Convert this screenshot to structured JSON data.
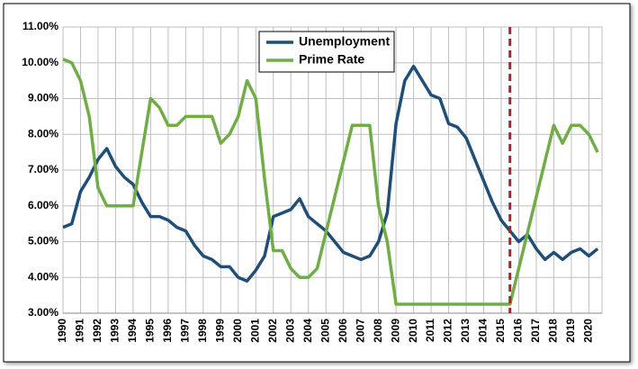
{
  "chart_data": {
    "type": "line",
    "x": [
      1990,
      1990.5,
      1991,
      1991.5,
      1992,
      1992.5,
      1993,
      1993.5,
      1994,
      1994.5,
      1995,
      1995.5,
      1996,
      1996.5,
      1997,
      1997.5,
      1998,
      1998.5,
      1999,
      1999.5,
      2000,
      2000.5,
      2001,
      2001.5,
      2002,
      2002.5,
      2003,
      2003.5,
      2004,
      2004.5,
      2005,
      2005.5,
      2006,
      2006.5,
      2007,
      2007.5,
      2008,
      2008.5,
      2009,
      2009.5,
      2010,
      2010.5,
      2011,
      2011.5,
      2012,
      2012.5,
      2013,
      2013.5,
      2014,
      2014.5,
      2015,
      2015.5,
      2016,
      2016.5,
      2017,
      2017.5,
      2018,
      2018.5,
      2019,
      2019.5,
      2020,
      2020.5
    ],
    "series": [
      {
        "name": "Unemployment",
        "color": "#1f4e79",
        "values": [
          5.4,
          5.5,
          6.4,
          6.8,
          7.3,
          7.6,
          7.1,
          6.8,
          6.6,
          6.1,
          5.7,
          5.7,
          5.6,
          5.4,
          5.3,
          4.9,
          4.6,
          4.5,
          4.3,
          4.3,
          4.0,
          3.9,
          4.2,
          4.6,
          5.7,
          5.8,
          5.9,
          6.2,
          5.7,
          5.5,
          5.3,
          5.0,
          4.7,
          4.6,
          4.5,
          4.6,
          5.0,
          5.8,
          8.3,
          9.5,
          9.9,
          9.5,
          9.1,
          9.0,
          8.3,
          8.2,
          7.9,
          7.3,
          6.7,
          6.1,
          5.6,
          5.3,
          5.0,
          5.2,
          4.8,
          4.5,
          4.7,
          4.5,
          4.7,
          4.8,
          4.6,
          4.8
        ]
      },
      {
        "name": "Prime Rate",
        "color": "#70ad47",
        "values": [
          10.1,
          10.0,
          9.5,
          8.5,
          6.5,
          6.0,
          6.0,
          6.0,
          6.0,
          7.5,
          9.0,
          8.75,
          8.25,
          8.25,
          8.5,
          8.5,
          8.5,
          8.5,
          7.75,
          8.0,
          8.5,
          9.5,
          9.0,
          6.75,
          4.75,
          4.75,
          4.25,
          4.0,
          4.0,
          4.25,
          5.25,
          6.25,
          7.25,
          8.25,
          8.25,
          8.25,
          6.0,
          5.0,
          3.25,
          3.25,
          3.25,
          3.25,
          3.25,
          3.25,
          3.25,
          3.25,
          3.25,
          3.25,
          3.25,
          3.25,
          3.25,
          3.25,
          4.25,
          5.25,
          6.25,
          7.25,
          8.25,
          7.75,
          8.25,
          8.25,
          8.0,
          7.5
        ]
      }
    ],
    "xlim": [
      1990,
      2020.75
    ],
    "xticks": [
      1990,
      1991,
      1992,
      1993,
      1994,
      1995,
      1996,
      1997,
      1998,
      1999,
      2000,
      2001,
      2002,
      2003,
      2004,
      2005,
      2006,
      2007,
      2008,
      2009,
      2010,
      2011,
      2012,
      2013,
      2014,
      2015,
      2016,
      2017,
      2018,
      2019,
      2020
    ],
    "ylim": [
      3,
      11
    ],
    "yticks": [
      {
        "value": 3,
        "label": "3.00%"
      },
      {
        "value": 4,
        "label": "4.00%"
      },
      {
        "value": 5,
        "label": "5.00%"
      },
      {
        "value": 6,
        "label": "6.00%"
      },
      {
        "value": 7,
        "label": "7.00%"
      },
      {
        "value": 8,
        "label": "8.00%"
      },
      {
        "value": 9,
        "label": "9.00%"
      },
      {
        "value": 10,
        "label": "10.00%"
      },
      {
        "value": 11,
        "label": "11.00%"
      }
    ],
    "grid": true,
    "legend": "top",
    "vline": {
      "x": 2015.5,
      "color": "#a0282a"
    }
  }
}
